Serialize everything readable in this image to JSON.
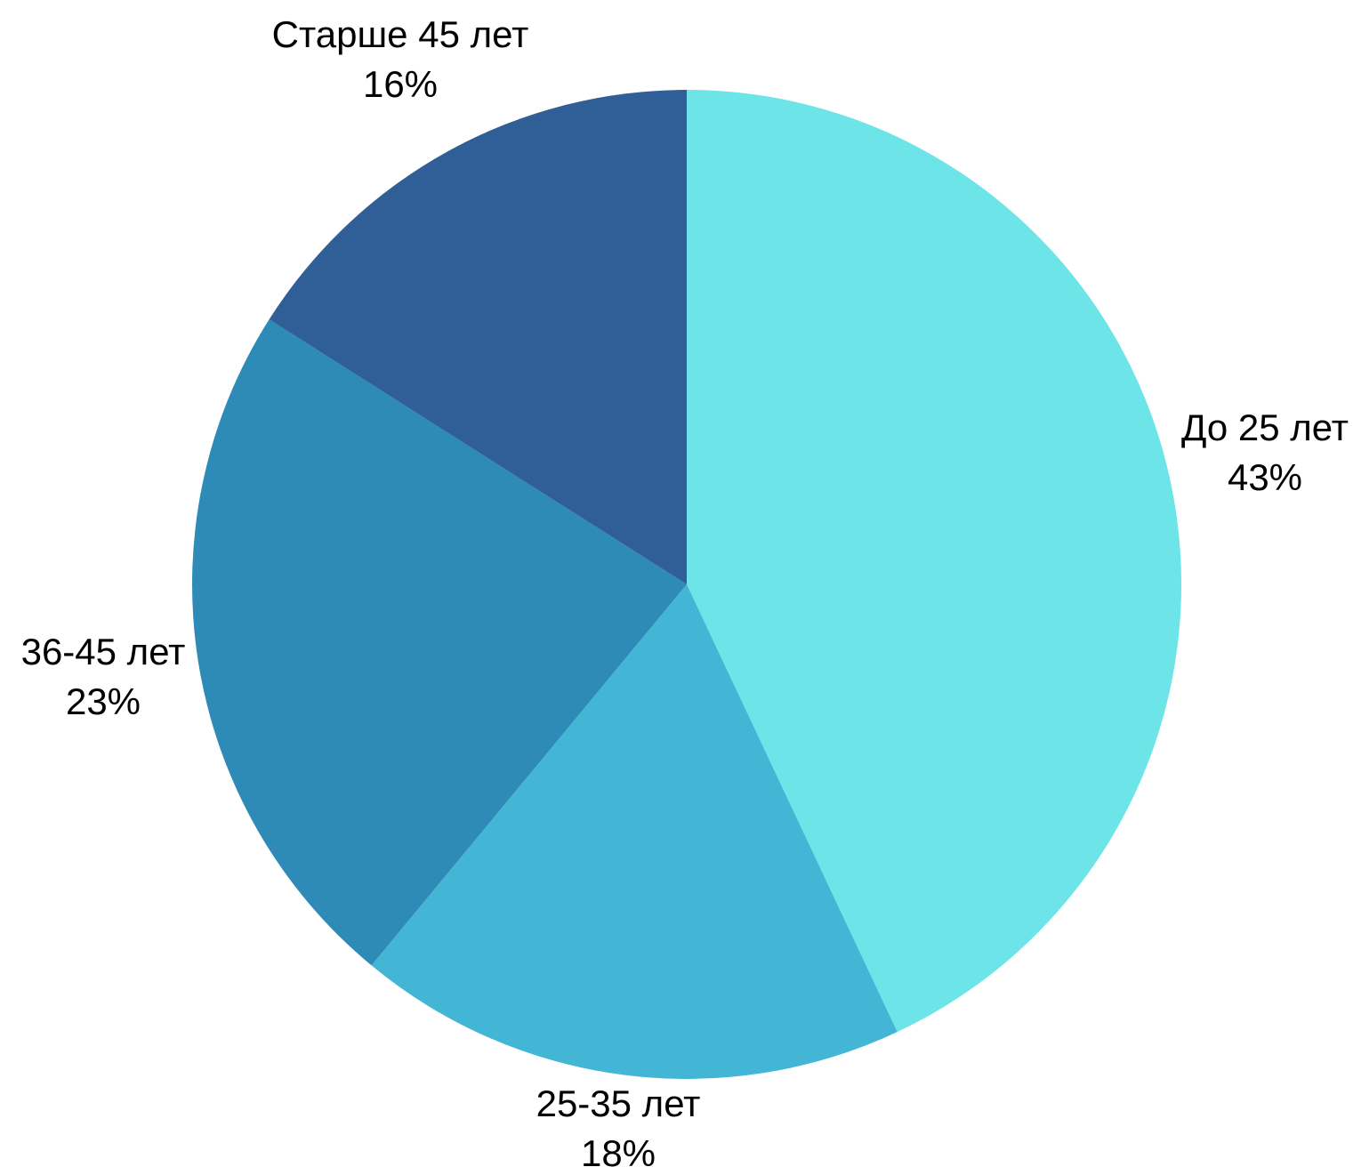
{
  "chart_data": {
    "type": "pie",
    "slices": [
      {
        "label": "До 25 лет",
        "value": 43,
        "value_label": "43%",
        "color": "#6CE4E8"
      },
      {
        "label": "25-35 лет",
        "value": 18,
        "value_label": "18%",
        "color": "#43B6D5"
      },
      {
        "label": "36-45 лет",
        "value": 23,
        "value_label": "23%",
        "color": "#2E8BB8"
      },
      {
        "label": "Старше 45 лет",
        "value": 16,
        "value_label": "16%",
        "color": "#2F5F96"
      }
    ],
    "start_angle": "12 o'clock",
    "direction": "clockwise",
    "legend": "none"
  }
}
